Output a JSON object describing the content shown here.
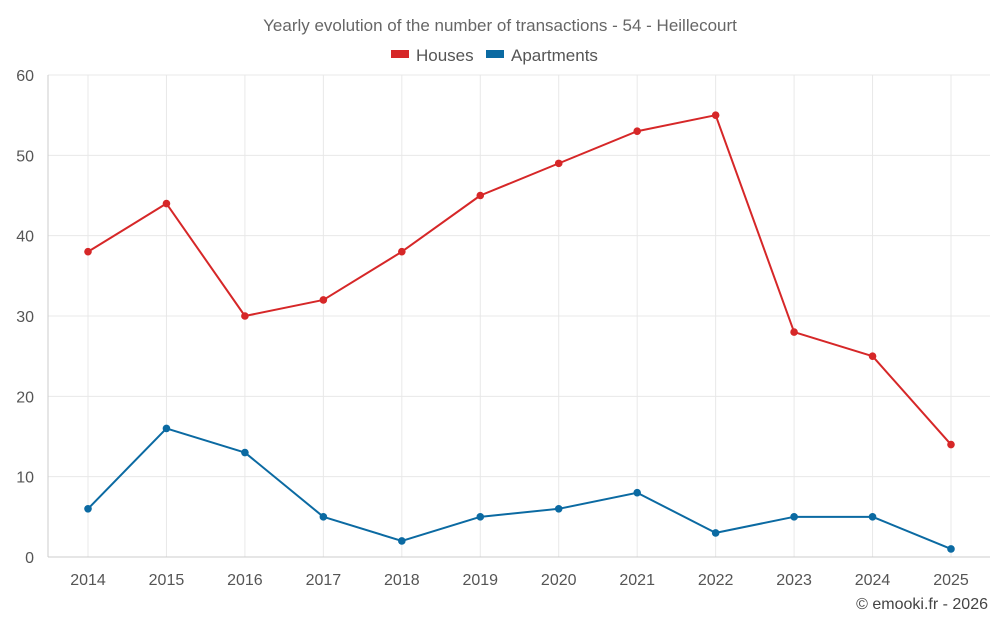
{
  "chart_data": {
    "type": "line",
    "title": "Yearly evolution of the number of transactions - 54 - Heillecourt",
    "xlabel": "",
    "ylabel": "",
    "categories": [
      "2014",
      "2015",
      "2016",
      "2017",
      "2018",
      "2019",
      "2020",
      "2021",
      "2022",
      "2023",
      "2024",
      "2025"
    ],
    "ylim": [
      0,
      60
    ],
    "yticks": [
      0,
      10,
      20,
      30,
      40,
      50,
      60
    ],
    "grid": true,
    "legend_position": "top-center",
    "series": [
      {
        "name": "Houses",
        "color": "#d62728",
        "values": [
          38,
          44,
          30,
          32,
          38,
          45,
          49,
          53,
          55,
          28,
          25,
          14
        ]
      },
      {
        "name": "Apartments",
        "color": "#0b6aa2",
        "values": [
          6,
          16,
          13,
          5,
          2,
          5,
          6,
          8,
          3,
          5,
          5,
          1
        ]
      }
    ]
  },
  "credit": "© emooki.fr - 2026"
}
